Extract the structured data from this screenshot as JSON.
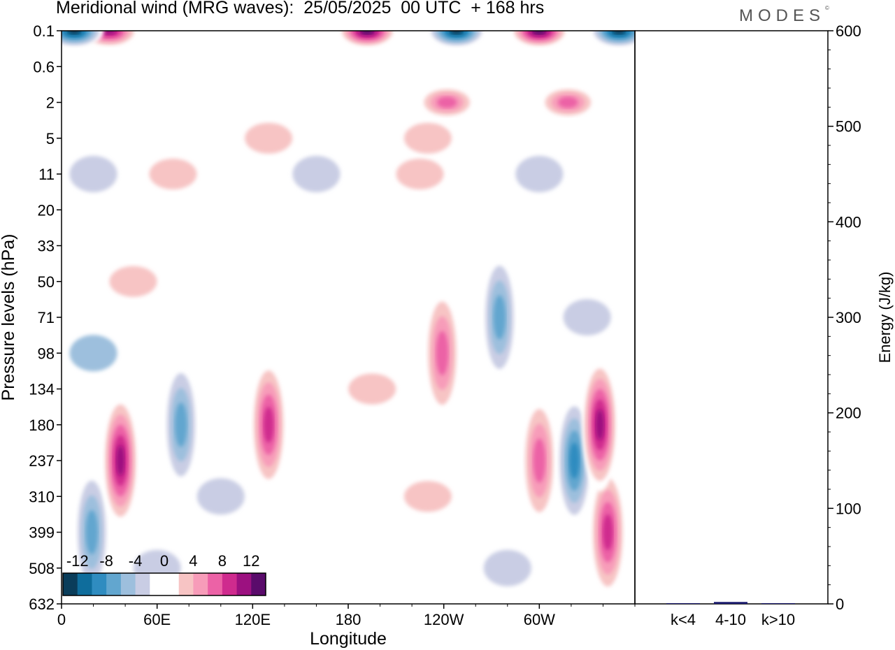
{
  "title": "Meridional wind (MRG waves):  25/05/2025  00 UTC  + 168 hrs",
  "logo": "MODES",
  "logo_mark": "©",
  "chart_data": [
    {
      "type": "heatmap",
      "variable": "Meridional wind (MRG waves)",
      "date": "25/05/2025",
      "time": "00 UTC",
      "lead": "+ 168 hrs",
      "xlabel": "Longitude",
      "ylabel": "Pressure levels (hPa)",
      "x_ticks": [
        "0",
        "60E",
        "120E",
        "180",
        "120W",
        "60W"
      ],
      "x_range_deg": [
        0,
        360
      ],
      "y_ticks": [
        "0.1",
        "0.6",
        "2",
        "5",
        "11",
        "20",
        "33",
        "50",
        "71",
        "98",
        "134",
        "180",
        "237",
        "310",
        "399",
        "508",
        "632"
      ],
      "colorbar": {
        "labels": [
          "-12",
          "-8",
          "-4",
          "0",
          "4",
          "8",
          "12"
        ],
        "levels": [
          -14,
          -12,
          -10,
          -8,
          -6,
          -4,
          -2,
          2,
          4,
          6,
          8,
          10,
          12,
          14
        ],
        "colors": [
          "#0a3d5a",
          "#0f6d9c",
          "#2f8cc0",
          "#62a6cf",
          "#9dbfdd",
          "#c9cde4",
          "#ffffff",
          "#ffffff",
          "#f7c4c4",
          "#f79cb9",
          "#ec62a6",
          "#cf2b8e",
          "#9c1180",
          "#5a0b6b"
        ]
      },
      "features": [
        {
          "lon": 8,
          "level": "0.1",
          "value": -14
        },
        {
          "lon": 30,
          "level": "0.1",
          "value": 12
        },
        {
          "lon": 192,
          "level": "0.1",
          "value": 14
        },
        {
          "lon": 248,
          "level": "0.1",
          "value": -14
        },
        {
          "lon": 300,
          "level": "0.1",
          "value": 14
        },
        {
          "lon": 350,
          "level": "0.1",
          "value": -14
        },
        {
          "lon": 242,
          "level": "2",
          "value": 8
        },
        {
          "lon": 318,
          "level": "2",
          "value": 8
        },
        {
          "lon": 37,
          "level": "237",
          "value": 12
        },
        {
          "lon": 130,
          "level": "180",
          "value": 10
        },
        {
          "lon": 322,
          "level": "237",
          "value": -10
        },
        {
          "lon": 338,
          "level": "180",
          "value": 12
        },
        {
          "lon": 343,
          "level": "399",
          "value": 10
        },
        {
          "lon": 75,
          "level": "180",
          "value": -8
        },
        {
          "lon": 19,
          "level": "399",
          "value": -8
        },
        {
          "lon": 300,
          "level": "237",
          "value": 8
        },
        {
          "lon": 275,
          "level": "71",
          "value": -8
        },
        {
          "lon": 239,
          "level": "98",
          "value": 8
        }
      ]
    },
    {
      "type": "bar",
      "ylabel": "Energy (J/kg)",
      "ylim": [
        0,
        600
      ],
      "y_ticks": [
        0,
        100,
        200,
        300,
        400,
        500,
        600
      ],
      "categories": [
        "k<4",
        "4-10",
        "k>10"
      ],
      "values": [
        0.5,
        2,
        0.5
      ],
      "color": "#1a1a6e"
    }
  ]
}
